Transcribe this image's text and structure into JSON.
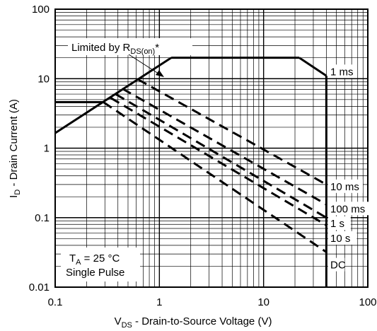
{
  "chart_data": {
    "type": "line",
    "x_scale": "log",
    "y_scale": "log",
    "xlim": [
      0.1,
      100
    ],
    "ylim": [
      0.01,
      100
    ],
    "grid": true,
    "x_ticks": [
      "0.1",
      "1",
      "10",
      "100"
    ],
    "y_ticks": [
      "100",
      "10",
      "1",
      "0.1",
      "0.01"
    ],
    "xlabel": {
      "main": "V",
      "sub": "DS",
      "rest": " - Drain-to-Source Voltage (V)"
    },
    "ylabel": {
      "main": "I",
      "sub": "D",
      "rest": " - Drain Current (A)"
    },
    "annotations": {
      "limited": {
        "main": "Limited by R",
        "sub": "DS(on)",
        "rest": "*"
      },
      "ta": {
        "main": "T",
        "sub": "A",
        "rest": " = 25 °C"
      },
      "pulse": "Single Pulse"
    },
    "rds_limit_line": {
      "x": [
        0.1,
        1.3
      ],
      "y": [
        1.65,
        20
      ]
    },
    "current_limit_line": {
      "x": [
        1.3,
        22
      ],
      "y": [
        20,
        20
      ]
    },
    "voltage_limit_line": {
      "x": [
        40,
        40
      ],
      "y": [
        0.01,
        11
      ]
    },
    "series": [
      {
        "name": "1 ms",
        "style": "solid",
        "x": [
          22,
          40
        ],
        "y": [
          20,
          11
        ]
      },
      {
        "name": "10 ms",
        "style": "dashed",
        "x": [
          0.62,
          40
        ],
        "y": [
          9.8,
          0.3
        ]
      },
      {
        "name": "100 ms",
        "style": "dashed",
        "x": [
          0.44,
          40
        ],
        "y": [
          7.2,
          0.155
        ]
      },
      {
        "name": "1 s",
        "style": "dashed",
        "x": [
          0.38,
          40
        ],
        "y": [
          6.0,
          0.1
        ]
      },
      {
        "name": "10 s",
        "style": "dashed",
        "x": [
          0.34,
          40
        ],
        "y": [
          5.3,
          0.078
        ]
      },
      {
        "name": "DC",
        "style": "solid",
        "x": [
          0.1,
          0.29
        ],
        "y": [
          4.6,
          4.6
        ]
      },
      {
        "name": "DC",
        "style": "dashed",
        "x": [
          0.29,
          40
        ],
        "y": [
          4.6,
          0.032
        ]
      }
    ]
  }
}
